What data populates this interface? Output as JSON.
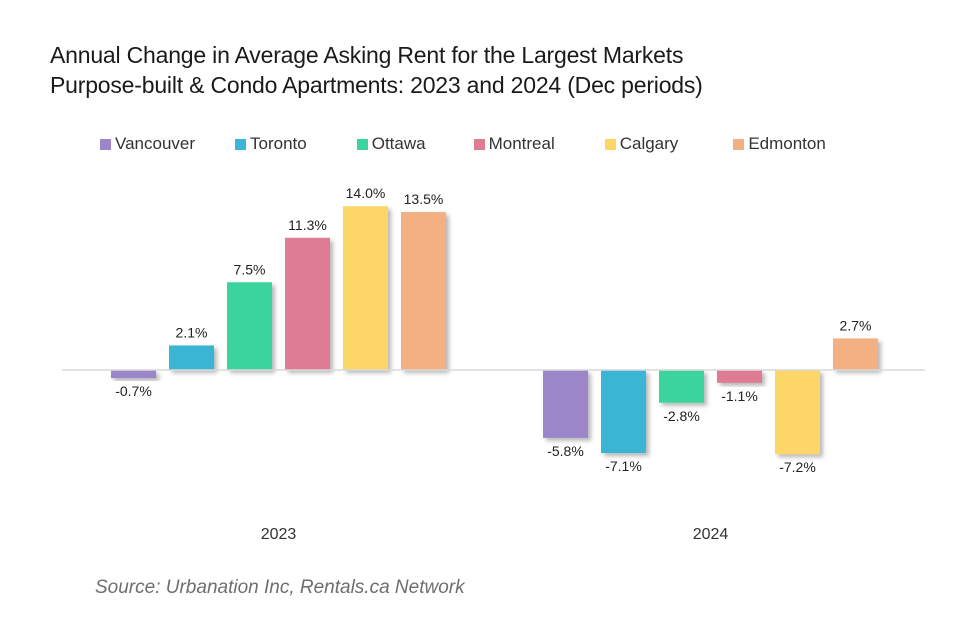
{
  "title_line1": "Annual Change in Average Asking Rent for the Largest Markets",
  "title_line2": "Purpose-built & Condo Apartments: 2023 and 2024 (Dec periods)",
  "source": "Source: Urbanation Inc, Rentals.ca Network",
  "chart_data": {
    "type": "bar",
    "title": "Annual Change in Average Asking Rent for the Largest Markets Purpose-built & Condo Apartments: 2023 and 2024 (Dec periods)",
    "xlabel": "",
    "ylabel": "",
    "categories": [
      "2023",
      "2024"
    ],
    "grid": false,
    "legend_position": "top",
    "value_format": "percent, 1 decimal",
    "series": [
      {
        "name": "Vancouver",
        "color": "#9b86c9",
        "values": [
          -0.7,
          -5.8
        ],
        "labels": [
          "-0.7%",
          "-5.8%"
        ]
      },
      {
        "name": "Toronto",
        "color": "#3bb5d4",
        "values": [
          2.1,
          -7.1
        ],
        "labels": [
          "2.1%",
          "-7.1%"
        ]
      },
      {
        "name": "Ottawa",
        "color": "#3ad49c",
        "values": [
          7.5,
          -2.8
        ],
        "labels": [
          "7.5%",
          "-2.8%"
        ]
      },
      {
        "name": "Montreal",
        "color": "#de7c94",
        "values": [
          11.3,
          -1.1
        ],
        "labels": [
          "11.3%",
          "-1.1%"
        ]
      },
      {
        "name": "Calgary",
        "color": "#fdd667",
        "values": [
          14.0,
          -7.2
        ],
        "labels": [
          "14.0%",
          "-7.2%"
        ]
      },
      {
        "name": "Edmonton",
        "color": "#f3b083",
        "values": [
          13.5,
          2.7
        ],
        "labels": [
          "13.5%",
          "2.7%"
        ]
      }
    ],
    "zero_line_color": "#d9d9d9"
  }
}
